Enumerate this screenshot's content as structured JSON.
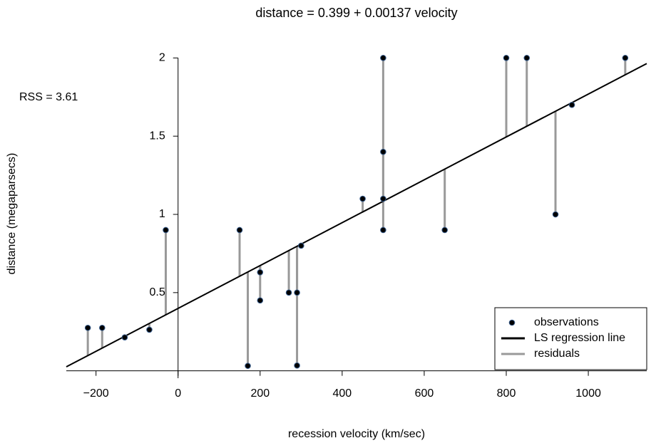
{
  "chart_data": {
    "type": "scatter",
    "title_lhs": "distance =",
    "intercept": 0.399,
    "title_plus": "+",
    "slope": 0.00137,
    "title_rhs": "velocity",
    "x_label": "recession velocity (km/sec)",
    "y_label": "distance (megaparsecs)",
    "rss_label": "RSS =",
    "rss": 3.61,
    "x": [
      170,
      290,
      -130,
      -70,
      -185,
      -220,
      200,
      290,
      270,
      200,
      300,
      -30,
      650,
      150,
      500,
      920,
      450,
      500,
      500,
      960,
      500,
      850,
      800,
      1090
    ],
    "values": [
      0.032,
      0.034,
      0.214,
      0.263,
      0.275,
      0.275,
      0.45,
      0.5,
      0.5,
      0.63,
      0.8,
      0.9,
      0.9,
      0.9,
      0.9,
      1.0,
      1.1,
      1.1,
      1.4,
      1.7,
      2.0,
      2.0,
      2.0,
      2.0
    ],
    "xlim": [
      -272.4,
      1142.4
    ],
    "ylim": [
      -0.047,
      2.079
    ],
    "xticks": [
      {
        "value": -200,
        "label": "−200"
      },
      0,
      200,
      400,
      600,
      800,
      1000
    ],
    "yticks": [
      0.5,
      1,
      1.5,
      2
    ],
    "series": [
      {
        "name": "observations",
        "color": "#000000"
      },
      {
        "name": "LS regression line",
        "color": "#000000"
      },
      {
        "name": "residuals",
        "color": "#999999"
      }
    ],
    "legend_position": "bottomright"
  }
}
